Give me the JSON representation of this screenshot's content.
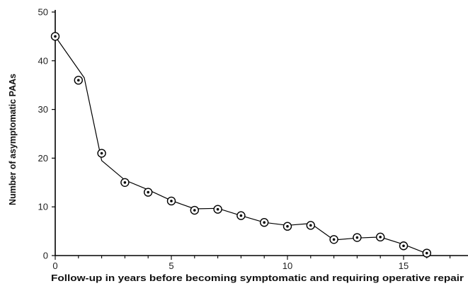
{
  "chart_data": {
    "type": "line",
    "title": "",
    "xlabel": "Follow-up in years before becoming symptomatic and requiring operative repair",
    "ylabel": "Number of asymptomatic PAAs",
    "xlim": [
      0,
      18
    ],
    "ylim": [
      0,
      50
    ],
    "x_ticks": [
      0,
      5,
      10,
      15
    ],
    "y_ticks": [
      0,
      10,
      20,
      30,
      40,
      50
    ],
    "grid": false,
    "legend": "none",
    "series": [
      {
        "x": [
          0,
          1,
          2,
          3,
          4,
          5,
          6,
          7,
          8,
          9,
          10,
          11,
          12,
          13,
          14,
          15,
          16
        ],
        "values": [
          45,
          36,
          21,
          15,
          13,
          11.2,
          9.3,
          9.5,
          8.2,
          6.8,
          6.0,
          6.2,
          3.3,
          3.7,
          3.8,
          2.0,
          0.5
        ]
      }
    ],
    "fit_line": {
      "x": [
        0,
        1.25,
        2,
        3,
        4,
        5,
        6,
        7,
        8,
        9,
        10,
        11,
        12,
        13,
        14,
        15,
        16
      ],
      "values": [
        45,
        36.5,
        19.5,
        15.5,
        13.5,
        11.3,
        9.6,
        9.7,
        8.2,
        6.8,
        6.2,
        6.6,
        3.2,
        3.6,
        3.8,
        2.3,
        0.4
      ]
    },
    "colors": {
      "axis": "#000000",
      "line": "#000000",
      "marker": "#000000"
    }
  }
}
